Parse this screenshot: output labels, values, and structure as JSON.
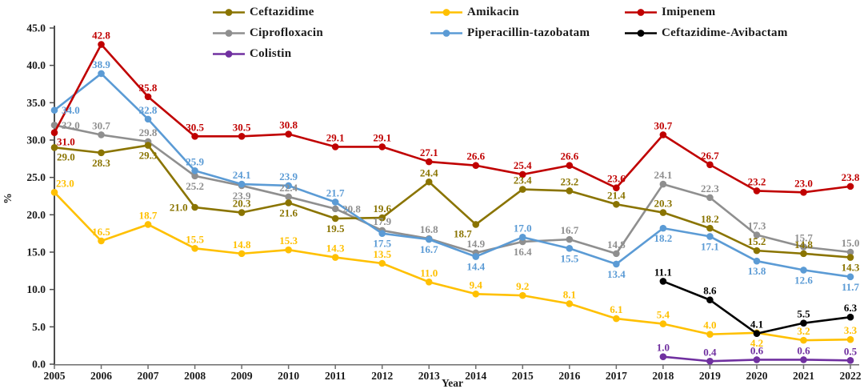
{
  "chart_data": {
    "type": "line",
    "title": "",
    "xlabel": "Year",
    "ylabel": "%",
    "x": [
      2005,
      2006,
      2007,
      2008,
      2009,
      2010,
      2011,
      2012,
      2013,
      2014,
      2015,
      2016,
      2017,
      2018,
      2019,
      2020,
      2021,
      2022
    ],
    "ylim": [
      0,
      45
    ],
    "ytick_step": 5,
    "grid": false,
    "legend_position": "top-center",
    "marker": "circle",
    "series": [
      {
        "name": "Ciprofloxacin",
        "color": "#8f8f8f",
        "values": [
          32.0,
          30.7,
          29.8,
          25.2,
          23.9,
          22.4,
          20.8,
          17.9,
          16.8,
          14.9,
          16.4,
          16.7,
          14.8,
          24.1,
          22.3,
          17.3,
          15.7,
          15.0
        ],
        "label_pos": [
          "r",
          "a",
          "a",
          "b",
          "b",
          "a",
          "r",
          "a",
          "a",
          "a",
          "b",
          "a",
          "a",
          "a",
          "a",
          "a",
          "a",
          "a"
        ]
      },
      {
        "name": "Ceftazidime",
        "color": "#8a7400",
        "values": [
          29.0,
          28.3,
          29.3,
          21.0,
          20.3,
          21.6,
          19.5,
          19.6,
          24.4,
          18.7,
          23.4,
          23.2,
          21.4,
          20.3,
          18.2,
          15.2,
          14.8,
          14.3
        ],
        "label_pos": [
          "rb",
          "b",
          "b",
          "l",
          "a",
          "b",
          "b",
          "a",
          "a",
          "bl",
          "a",
          "a",
          "a",
          "a",
          "a",
          "a",
          "a",
          "b"
        ]
      },
      {
        "name": "Amikacin",
        "color": "#ffc000",
        "values": [
          23.0,
          16.5,
          18.7,
          15.5,
          14.8,
          15.3,
          14.3,
          13.5,
          11.0,
          9.4,
          9.2,
          8.1,
          6.1,
          5.4,
          4.0,
          4.2,
          3.2,
          3.3
        ],
        "label_pos": [
          "ra",
          "a",
          "a",
          "a",
          "a",
          "a",
          "a",
          "a",
          "a",
          "a",
          "a",
          "a",
          "a",
          "a",
          "a",
          "b",
          "a",
          "a"
        ]
      },
      {
        "name": "Piperacillin-tazobatam",
        "color": "#5b9bd5",
        "values": [
          34.0,
          38.9,
          32.8,
          25.9,
          24.1,
          23.9,
          21.7,
          17.5,
          16.7,
          14.4,
          17.0,
          15.5,
          13.4,
          18.2,
          17.1,
          13.8,
          12.6,
          11.7
        ],
        "label_pos": [
          "r",
          "a",
          "a",
          "a",
          "a",
          "a",
          "a",
          "b",
          "b",
          "b",
          "a",
          "b",
          "b",
          "b",
          "b",
          "b",
          "b",
          "b"
        ]
      },
      {
        "name": "Imipenem",
        "color": "#c00000",
        "values": [
          31.0,
          42.8,
          35.8,
          30.5,
          30.5,
          30.8,
          29.1,
          29.1,
          27.1,
          26.6,
          25.4,
          26.6,
          23.6,
          30.7,
          26.7,
          23.2,
          23.0,
          23.8
        ],
        "label_pos": [
          "rb",
          "a",
          "a",
          "a",
          "a",
          "a",
          "a",
          "a",
          "a",
          "a",
          "a",
          "a",
          "a",
          "a",
          "a",
          "a",
          "a",
          "a"
        ]
      },
      {
        "name": "Ceftazidime-Avibactam",
        "color": "#000000",
        "values": [
          null,
          null,
          null,
          null,
          null,
          null,
          null,
          null,
          null,
          null,
          null,
          null,
          null,
          11.1,
          8.6,
          4.1,
          5.5,
          6.3
        ],
        "label_pos": [
          "",
          "",
          "",
          "",
          "",
          "",
          "",
          "",
          "",
          "",
          "",
          "",
          "",
          "a",
          "a",
          "a",
          "a",
          "a"
        ]
      },
      {
        "name": "Colistin",
        "color": "#7030a0",
        "values": [
          null,
          null,
          null,
          null,
          null,
          null,
          null,
          null,
          null,
          null,
          null,
          null,
          null,
          1.0,
          0.4,
          0.6,
          0.6,
          0.5
        ],
        "label_pos": [
          "",
          "",
          "",
          "",
          "",
          "",
          "",
          "",
          "",
          "",
          "",
          "",
          "",
          "a",
          "a",
          "a",
          "a",
          "a"
        ]
      }
    ],
    "legend_columns": [
      [
        1,
        0,
        6
      ],
      [
        2,
        3
      ],
      [
        4,
        5
      ]
    ]
  }
}
